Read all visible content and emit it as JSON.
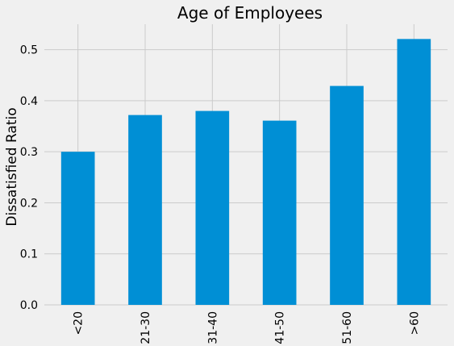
{
  "chart_data": {
    "type": "bar",
    "title": "Age of Employees",
    "xlabel": "",
    "ylabel": "Dissatisfied Ratio",
    "categories": [
      "<20",
      "21-30",
      "31-40",
      "41-50",
      "51-60",
      ">60"
    ],
    "values": [
      0.3,
      0.372,
      0.38,
      0.361,
      0.429,
      0.521
    ],
    "ylim": [
      0.0,
      0.55
    ],
    "yticks": [
      0.0,
      0.1,
      0.2,
      0.3,
      0.4,
      0.5
    ],
    "ytick_labels": [
      "0.0",
      "0.1",
      "0.2",
      "0.3",
      "0.4",
      "0.5"
    ],
    "grid": true,
    "legend": "none",
    "colors": {
      "background": "#f0f0f0",
      "bar": "#008fd5",
      "grid": "#cbcbcb",
      "text": "#000000"
    }
  }
}
